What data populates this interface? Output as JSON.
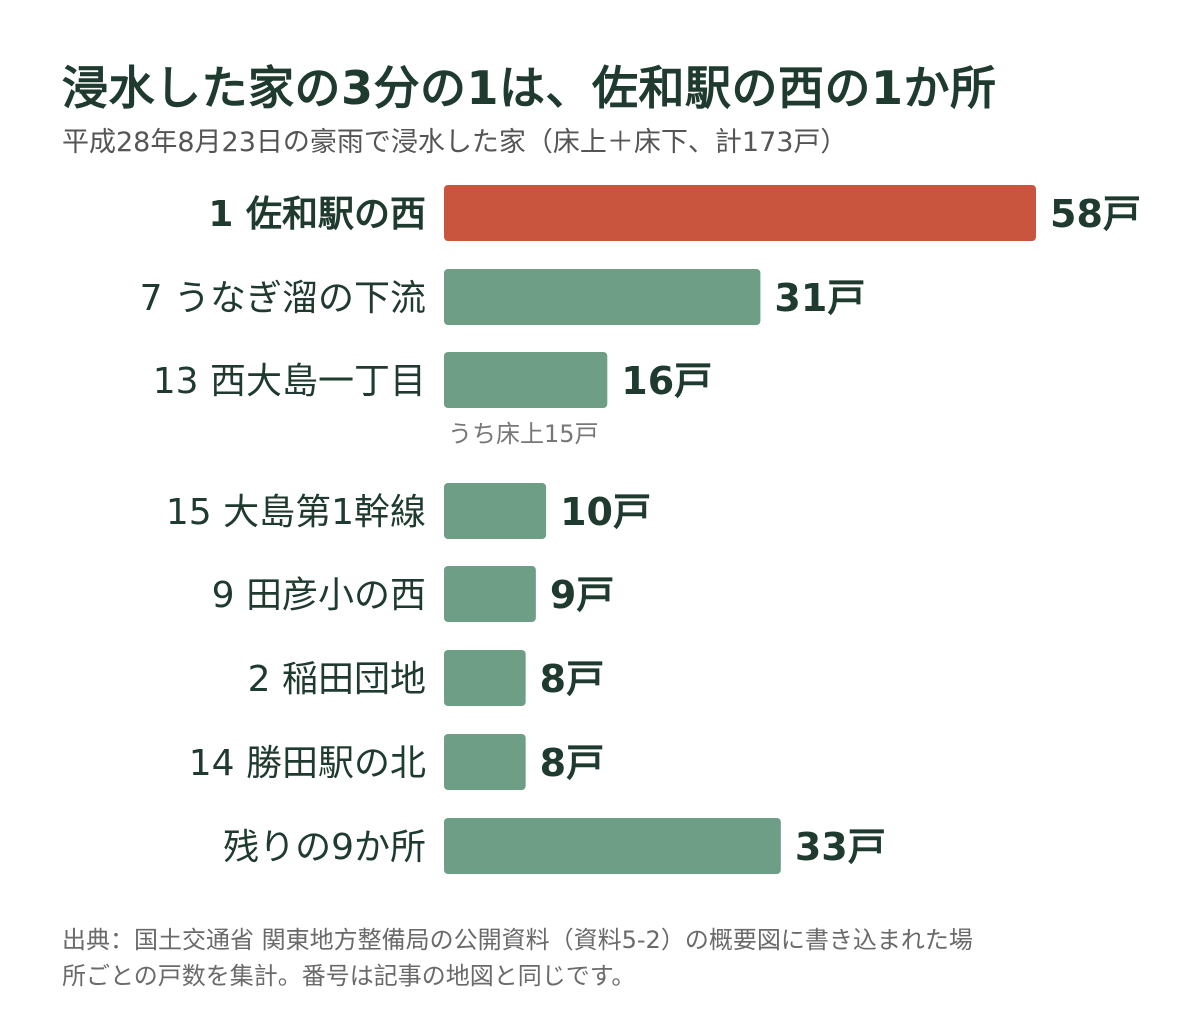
{
  "header": {
    "title": "浸水した家の3分の1は、佐和駅の西の1か所",
    "subtitle": "平成28年8月23日の豪雨で浸水した家（床上＋床下、計173戸）"
  },
  "footer": {
    "line1": "出典：国土交通省 関東地方整備局の公開資料（資料5-2）の概要図に書き込まれた場",
    "line2": "所ごとの戸数を集計。番号は記事の地図と同じです。"
  },
  "colors": {
    "highlight": "#c9553f",
    "normal": "#6e9e85",
    "label": "#1f3a2e",
    "note": "#777777"
  },
  "chart_data": {
    "type": "bar",
    "orientation": "horizontal",
    "title": "浸水した家の3分の1は、佐和駅の西の1か所",
    "subtitle": "平成28年8月23日の豪雨で浸水した家（床上＋床下、計173戸）",
    "categories": [
      "1 佐和駅の西",
      "7 うなぎ溜の下流",
      "13 西大島一丁目",
      "15 大島第1幹線",
      "9 田彦小の西",
      "2 稲田団地",
      "14 勝田駅の北",
      "残りの9か所"
    ],
    "values": [
      58,
      31,
      16,
      10,
      9,
      8,
      8,
      33
    ],
    "value_labels": [
      "58戸",
      "31戸",
      "16戸",
      "10戸",
      "9戸",
      "8戸",
      "8戸",
      "33戸"
    ],
    "highlight_index": 0,
    "annotations": [
      {
        "category_index": 2,
        "text": "うち床上15戸"
      }
    ],
    "xlim": [
      0,
      58
    ],
    "grid": false,
    "legend": "none"
  }
}
